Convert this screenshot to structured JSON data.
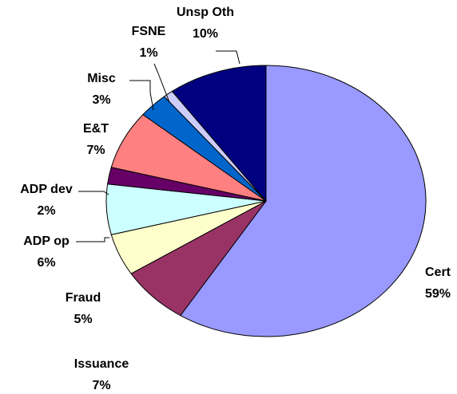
{
  "chart_data": {
    "type": "pie",
    "categories": [
      "Cert",
      "Issuance",
      "Fraud",
      "ADP op",
      "ADP dev",
      "E&T",
      "Misc",
      "FSNE",
      "Unsp Oth"
    ],
    "values": [
      59,
      7,
      5,
      6,
      2,
      7,
      3,
      1,
      10
    ],
    "value_labels": [
      "59%",
      "7%",
      "5%",
      "6%",
      "2%",
      "7%",
      "3%",
      "1%",
      "10%"
    ],
    "colors": [
      "#9999ff",
      "#993366",
      "#ffffcc",
      "#ccffff",
      "#660066",
      "#ff8080",
      "#0066cc",
      "#ccccff",
      "#000080"
    ]
  }
}
